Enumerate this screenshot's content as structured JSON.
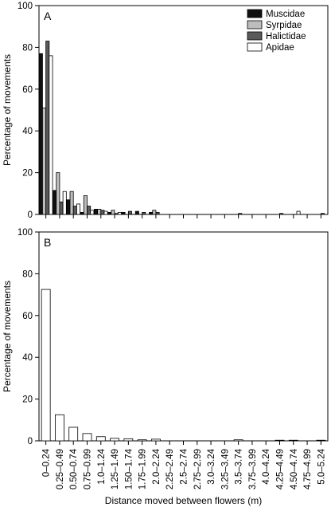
{
  "chart_data": [
    {
      "panel_label": "A",
      "type": "bar",
      "ylabel": "Percentage of movements",
      "xlabel": "",
      "ylim": [
        0,
        100
      ],
      "yticks": [
        0,
        20,
        40,
        60,
        80,
        100
      ],
      "legend_position": "top-right",
      "categories": [
        "0–0.24",
        "0.25–0.49",
        "0.50–0.74",
        "0.75–0.99",
        "1.0–1.24",
        "1.25–1.49",
        "1.50–1.74",
        "1.75–1.99",
        "2.0–2.24",
        "2.25–2.49",
        "2.5–2.74",
        "2.75–2.99",
        "3.0–3.24",
        "3.25–3.49",
        "3.5–3.74",
        "3.75–3.99",
        "4.0–4.24",
        "4.25–4.49",
        "4.50–4.74",
        "4.75–4.99",
        "5.0–5.24"
      ],
      "series": [
        {
          "name": "Muscidae",
          "color": "#111111",
          "values": [
            77,
            11.5,
            7,
            1,
            2.5,
            1,
            1,
            1.5,
            1,
            0,
            0,
            0,
            0,
            0,
            0,
            0,
            0,
            0,
            0,
            0,
            0
          ]
        },
        {
          "name": "Syrpidae",
          "color": "#bdbdbd",
          "values": [
            51,
            20,
            11,
            9,
            2.5,
            2,
            0,
            0,
            2,
            0,
            0,
            0,
            0,
            0,
            0,
            0,
            0,
            0,
            0,
            0,
            0
          ]
        },
        {
          "name": "Halictidae",
          "color": "#5a5a5a",
          "values": [
            83,
            6,
            4,
            4,
            2,
            0.5,
            1.5,
            1,
            1,
            0,
            0,
            0,
            0,
            0,
            0.5,
            0,
            0,
            0.5,
            0,
            0,
            0.5
          ]
        },
        {
          "name": "Apidae",
          "color": "#ffffff",
          "values": [
            76,
            11,
            5,
            2,
            1.5,
            1,
            0,
            0,
            0,
            0,
            0,
            0,
            0,
            0,
            0,
            0,
            0,
            0,
            1.5,
            0,
            0
          ]
        }
      ]
    },
    {
      "panel_label": "B",
      "type": "bar",
      "ylabel": "Percentage of movements",
      "xlabel": "Distance moved between flowers (m)",
      "ylim": [
        0,
        100
      ],
      "yticks": [
        0,
        20,
        40,
        60,
        80,
        100
      ],
      "categories": [
        "0–0.24",
        "0.25–0.49",
        "0.50–0.74",
        "0.75–0.99",
        "1.0–1.24",
        "1.25–1.49",
        "1.50–1.74",
        "1.75–1.99",
        "2.0–2.24",
        "2.25–2.49",
        "2.5–2.74",
        "2.75–2.99",
        "3.0–3.24",
        "3.25–3.49",
        "3.5–3.74",
        "3.75–3.99",
        "4.0–4.24",
        "4.25–4.49",
        "4.50–4.74",
        "4.75–4.99",
        "5.0–5.24"
      ],
      "series": [
        {
          "color": "#ffffff",
          "values": [
            72.5,
            12.5,
            6.5,
            3.5,
            2,
            1.2,
            1,
            0.5,
            0.8,
            0,
            0,
            0,
            0,
            0,
            0.5,
            0,
            0,
            0.3,
            0.3,
            0,
            0.3
          ]
        }
      ]
    }
  ]
}
